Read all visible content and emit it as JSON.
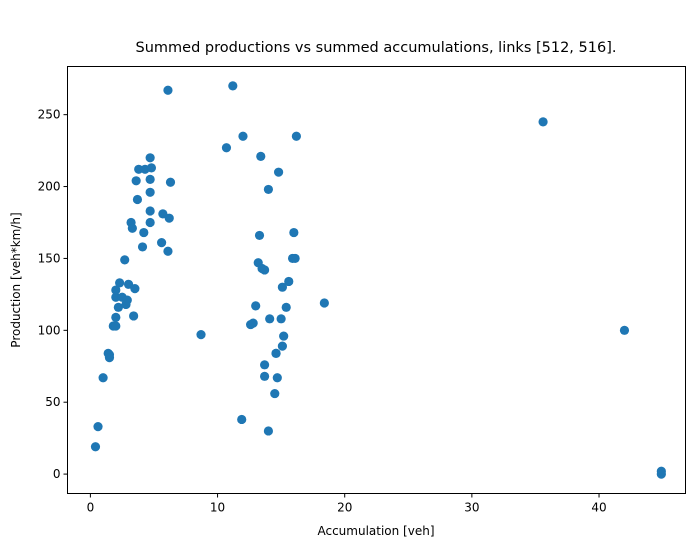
{
  "chart_data": {
    "type": "scatter",
    "title": "Summed productions vs summed accumulations, links [512, 516].",
    "xlabel": "Accumulation [veh]",
    "ylabel": "Production [veh*km/h]",
    "xlim": [
      -1.8,
      46.8
    ],
    "ylim": [
      -13.5,
      283.5
    ],
    "xticks": [
      0,
      10,
      20,
      30,
      40
    ],
    "yticks": [
      0,
      50,
      100,
      150,
      200,
      250
    ],
    "grid": false,
    "legend": "none",
    "marker_color": "#1f77b4",
    "series": [
      {
        "points": [
          [
            0.4,
            19
          ],
          [
            0.6,
            33
          ],
          [
            1.0,
            67
          ],
          [
            1.4,
            84
          ],
          [
            1.5,
            83
          ],
          [
            1.5,
            81
          ],
          [
            1.8,
            103
          ],
          [
            2.0,
            103
          ],
          [
            2.0,
            109
          ],
          [
            2.0,
            123
          ],
          [
            2.0,
            128
          ],
          [
            2.2,
            116
          ],
          [
            2.3,
            133
          ],
          [
            2.5,
            123
          ],
          [
            2.7,
            149
          ],
          [
            2.8,
            118
          ],
          [
            2.9,
            121
          ],
          [
            3.0,
            132
          ],
          [
            3.2,
            175
          ],
          [
            3.3,
            171
          ],
          [
            3.4,
            110
          ],
          [
            3.5,
            129
          ],
          [
            3.6,
            204
          ],
          [
            3.7,
            191
          ],
          [
            3.8,
            212
          ],
          [
            4.1,
            158
          ],
          [
            4.2,
            168
          ],
          [
            4.3,
            212
          ],
          [
            4.7,
            175
          ],
          [
            4.7,
            183
          ],
          [
            4.7,
            196
          ],
          [
            4.7,
            205
          ],
          [
            4.7,
            220
          ],
          [
            4.8,
            213
          ],
          [
            5.6,
            161
          ],
          [
            5.7,
            181
          ],
          [
            6.1,
            155
          ],
          [
            6.2,
            178
          ],
          [
            6.1,
            267
          ],
          [
            6.3,
            203
          ],
          [
            8.7,
            97
          ],
          [
            10.7,
            227
          ],
          [
            11.2,
            270
          ],
          [
            11.9,
            38
          ],
          [
            12.0,
            235
          ],
          [
            12.6,
            104
          ],
          [
            12.8,
            105
          ],
          [
            13.0,
            117
          ],
          [
            13.2,
            147
          ],
          [
            13.3,
            166
          ],
          [
            13.4,
            221
          ],
          [
            13.5,
            143
          ],
          [
            13.7,
            142
          ],
          [
            13.7,
            68
          ],
          [
            13.7,
            76
          ],
          [
            14.0,
            198
          ],
          [
            14.0,
            30
          ],
          [
            14.1,
            108
          ],
          [
            14.5,
            56
          ],
          [
            14.6,
            84
          ],
          [
            14.6,
            84
          ],
          [
            14.7,
            67
          ],
          [
            14.8,
            210
          ],
          [
            15.0,
            108
          ],
          [
            15.1,
            89
          ],
          [
            15.1,
            130
          ],
          [
            15.2,
            96
          ],
          [
            15.4,
            116
          ],
          [
            15.6,
            134
          ],
          [
            15.9,
            150
          ],
          [
            16.0,
            168
          ],
          [
            16.1,
            150
          ],
          [
            16.2,
            235
          ],
          [
            18.4,
            119
          ],
          [
            35.6,
            245
          ],
          [
            42.0,
            100
          ],
          [
            44.9,
            2
          ],
          [
            44.9,
            0
          ]
        ]
      }
    ]
  }
}
